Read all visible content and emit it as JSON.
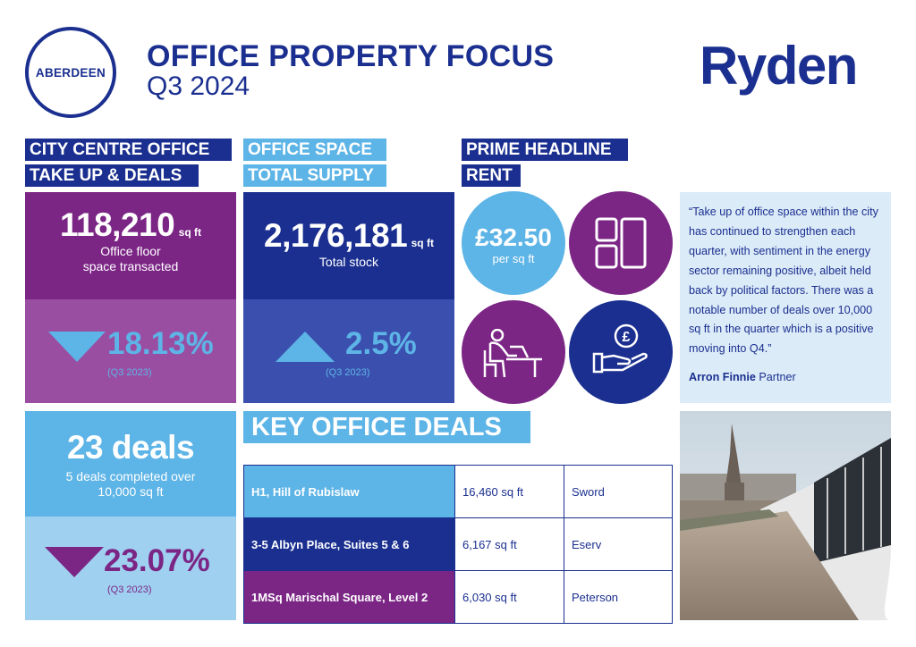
{
  "header": {
    "city_badge": "ABERDEEN",
    "title": "OFFICE PROPERTY FOCUS",
    "period": "Q3 2024",
    "logo": "Ryden"
  },
  "colors": {
    "navy": "#1a2f8f",
    "purple": "#7b2585",
    "light_blue": "#5db4e6",
    "pale_blue": "#dcebf8"
  },
  "takeup": {
    "heading_line1": "CITY CENTRE OFFICE",
    "heading_line2": "TAKE UP & DEALS",
    "value": "118,210",
    "unit": "sq ft",
    "label_line1": "Office floor",
    "label_line2": "space transacted",
    "change": "18.13%",
    "change_direction": "down",
    "comparison": "(Q3 2023)"
  },
  "supply": {
    "heading_line1": "OFFICE SPACE",
    "heading_line2": "TOTAL SUPPLY",
    "value": "2,176,181",
    "unit": "sq ft",
    "label": "Total stock",
    "change": "2.5%",
    "change_direction": "up",
    "comparison": "(Q3 2023)"
  },
  "rent": {
    "heading_line1": "PRIME HEADLINE",
    "heading_line2": "RENT",
    "value": "£32.50",
    "unit": "per sq ft",
    "icons": [
      "floor-plan-icon",
      "office-worker-icon",
      "pound-hand-icon"
    ]
  },
  "deals": {
    "value": "23 deals",
    "label_line1": "5 deals completed over",
    "label_line2": "10,000 sq ft",
    "change": "23.07%",
    "change_direction": "down",
    "comparison": "(Q3 2023)"
  },
  "quote": {
    "text": "“Take up of office space within the city has continued to strengthen each quarter, with sentiment in the energy sector remaining positive, albeit held back by political factors. There was a notable number of deals over 10,000 sq ft in the quarter which is a positive moving into Q4.”",
    "author": "Arron Finnie",
    "role": "Partner"
  },
  "key_deals": {
    "heading": "KEY OFFICE DEALS",
    "rows": [
      {
        "property": "H1, Hill of Rubislaw",
        "size": "16,460 sq ft",
        "tenant": "Sword",
        "color": "#5db4e6"
      },
      {
        "property": "3-5 Albyn Place, Suites 5 & 6",
        "size": "6,167 sq ft",
        "tenant": "Eserv",
        "color": "#1a2f8f"
      },
      {
        "property": "1MSq Marischal Square, Level 2",
        "size": "6,030 sq ft",
        "tenant": "Peterson",
        "color": "#7b2585"
      }
    ]
  }
}
